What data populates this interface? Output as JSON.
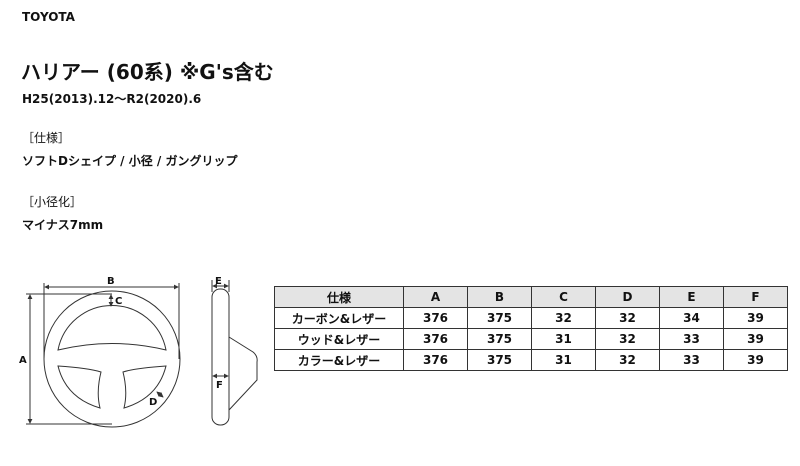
{
  "maker": "TOYOTA",
  "title": "ハリアー (60系) ※G's含む",
  "years": "H25(2013).12～R2(2020).6",
  "spec": {
    "heading": "［仕様］",
    "value": "ソフトDシェイプ / 小径 / ガングリップ"
  },
  "reduction": {
    "heading": "［小径化］",
    "value": "マイナス7mm"
  },
  "diagram": {
    "labels": {
      "a": "A",
      "b": "B",
      "c": "C",
      "d": "D",
      "e": "E",
      "f": "F"
    }
  },
  "table": {
    "headers": [
      "仕様",
      "A",
      "B",
      "C",
      "D",
      "E",
      "F"
    ],
    "rows": [
      [
        "カーボン&レザー",
        "376",
        "375",
        "32",
        "32",
        "34",
        "39"
      ],
      [
        "ウッド&レザー",
        "376",
        "375",
        "31",
        "32",
        "33",
        "39"
      ],
      [
        "カラー&レザー",
        "376",
        "375",
        "31",
        "32",
        "33",
        "39"
      ]
    ]
  }
}
